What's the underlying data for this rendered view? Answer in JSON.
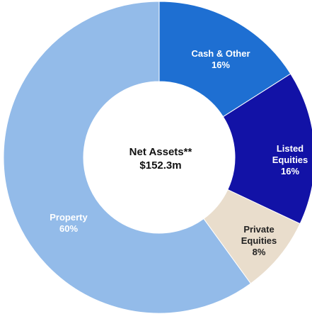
{
  "chart_data": {
    "type": "donut",
    "categories": [
      "Cash & Other",
      "Listed Equities",
      "Private Equities",
      "Property"
    ],
    "values": [
      16,
      16,
      8,
      60
    ],
    "value_labels": [
      "16%",
      "16%",
      "8%",
      "60%"
    ],
    "colors": [
      "#1e6fd2",
      "#1212a6",
      "#e9ddcc",
      "#93bbe9"
    ],
    "center_text": [
      "Net Assets**",
      "$152.3m"
    ]
  }
}
